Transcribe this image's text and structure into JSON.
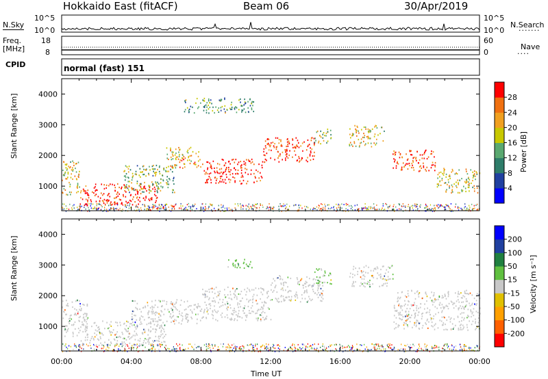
{
  "header": {
    "station": "Hokkaido East (fitACF)",
    "beam": "Beam 06",
    "date": "30/Apr/2019"
  },
  "top_panels": {
    "nsky_label": "N.Sky",
    "nsky_ticks": [
      "10^5",
      "10^0"
    ],
    "nsearch_label": "N.Search",
    "nsearch_ticks": [
      "10^5",
      "10^0"
    ],
    "freq_label_1": "Freq.",
    "freq_label_2": "[MHz]",
    "freq_ticks": [
      "18",
      "8"
    ],
    "nave_label": "Nave",
    "nave_ticks": [
      "60",
      "0"
    ],
    "cpid_label": "CPID",
    "cpid_value": "normal (fast) 151"
  },
  "chart_data": [
    {
      "type": "heatmap",
      "panel": "power",
      "ylabel": "Slant Range [km]",
      "y_ticks": [
        1000,
        2000,
        3000,
        4000
      ],
      "ylim": [
        200,
        4500
      ],
      "xlim_hours": [
        0,
        24
      ],
      "colorbar_label": "Power [dB]",
      "colorbar_ticks": [
        "28",
        "24",
        "20",
        "16",
        "12",
        "8",
        "4"
      ],
      "colorbar_range": [
        0,
        30
      ],
      "bands": [
        {
          "t0": 0.0,
          "t1": 1.0,
          "r0": 700,
          "r1": 1900,
          "level": 18
        },
        {
          "t0": 1.0,
          "t1": 5.5,
          "r0": 400,
          "r1": 1100,
          "level": 29
        },
        {
          "t0": 3.5,
          "t1": 6.5,
          "r0": 800,
          "r1": 1700,
          "level": 14
        },
        {
          "t0": 6.0,
          "t1": 8.0,
          "r0": 1600,
          "r1": 2300,
          "level": 20
        },
        {
          "t0": 8.0,
          "t1": 11.5,
          "r0": 1100,
          "r1": 1900,
          "level": 29
        },
        {
          "t0": 11.5,
          "t1": 14.5,
          "r0": 1800,
          "r1": 2600,
          "level": 27
        },
        {
          "t0": 14.5,
          "t1": 15.5,
          "r0": 2400,
          "r1": 2900,
          "level": 16
        },
        {
          "t0": 7.0,
          "t1": 11.0,
          "r0": 3400,
          "r1": 3900,
          "level": 12
        },
        {
          "t0": 16.5,
          "t1": 18.5,
          "r0": 2300,
          "r1": 3000,
          "level": 18
        },
        {
          "t0": 19.0,
          "t1": 21.5,
          "r0": 1500,
          "r1": 2200,
          "level": 26
        },
        {
          "t0": 21.5,
          "t1": 24.0,
          "r0": 800,
          "r1": 1600,
          "level": 17
        }
      ]
    },
    {
      "type": "heatmap",
      "panel": "velocity",
      "ylabel": "Slant Range [km]",
      "y_ticks": [
        1000,
        2000,
        3000,
        4000
      ],
      "ylim": [
        200,
        4500
      ],
      "xlim_hours": [
        0,
        24
      ],
      "x_ticks": [
        "00:00",
        "04:00",
        "08:00",
        "12:00",
        "16:00",
        "20:00",
        "00:00"
      ],
      "xlabel": "Time UT",
      "colorbar_label": "Velocity [m s⁻¹]",
      "colorbar_ticks": [
        "200",
        "100",
        "50",
        "15",
        "-15",
        "-50",
        "-100",
        "-200"
      ],
      "colorbar_range": [
        -250,
        250
      ],
      "bands": [
        {
          "t0": 0.0,
          "t1": 1.5,
          "r0": 700,
          "r1": 1900,
          "level": 0
        },
        {
          "t0": 1.0,
          "t1": 6.0,
          "r0": 400,
          "r1": 1200,
          "level": 0
        },
        {
          "t0": 4.0,
          "t1": 8.0,
          "r0": 1100,
          "r1": 1900,
          "level": 0
        },
        {
          "t0": 8.0,
          "t1": 12.0,
          "r0": 1200,
          "r1": 2300,
          "level": 0
        },
        {
          "t0": 12.0,
          "t1": 15.0,
          "r0": 1800,
          "r1": 2700,
          "level": 0
        },
        {
          "t0": 14.5,
          "t1": 15.5,
          "r0": 2400,
          "r1": 2900,
          "level": 30
        },
        {
          "t0": 9.5,
          "t1": 11.0,
          "r0": 2900,
          "r1": 3200,
          "level": 40
        },
        {
          "t0": 16.5,
          "t1": 19.0,
          "r0": 2300,
          "r1": 3000,
          "level": 20
        },
        {
          "t0": 19.0,
          "t1": 24.0,
          "r0": 900,
          "r1": 2200,
          "level": 0
        }
      ]
    }
  ]
}
